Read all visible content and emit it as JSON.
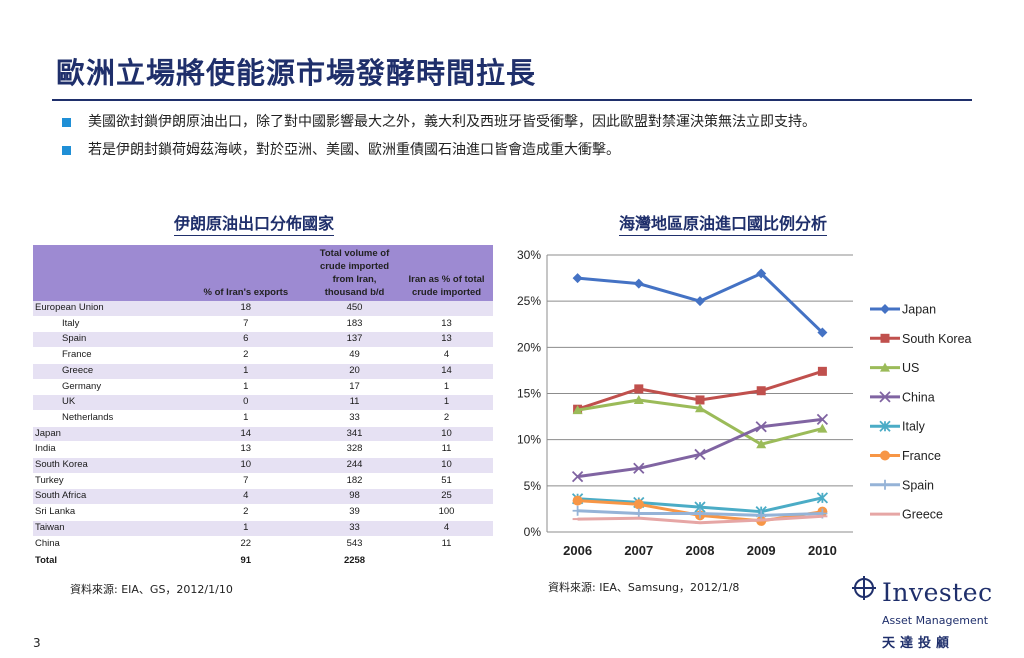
{
  "title": "歐洲立場將使能源市場發酵時間拉長",
  "bullets": [
    "美國欲封鎖伊朗原油出口，除了對中國影響最大之外，義大利及西班牙皆受衝擊，因此歐盟對禁運決策無法立即支持。",
    "若是伊朗封鎖荷姆茲海峽，對於亞洲、美國、歐洲重債國石油進口皆會造成重大衝擊。"
  ],
  "left_section": {
    "subtitle": "伊朗原油出口分佈國家",
    "source": "資料來源:  EIA、GS，2012/1/10"
  },
  "right_section": {
    "subtitle": "海灣地區原油進口國比例分析",
    "source": "資料來源: IEA、Samsung，2012/1/8"
  },
  "page_number": "3",
  "logo": {
    "brand": "Investec",
    "sub": "Asset Management",
    "cn": "天達投顧"
  },
  "colors": {
    "title": "#1f2f6b",
    "bullet": "#1f8fd6",
    "table_header": "#9d8ad2",
    "table_stripe": "#e6e1f3"
  },
  "chart_data": [
    {
      "type": "table",
      "columns": [
        "",
        "% of Iran's exports",
        "Total volume of crude imported from Iran, thousand b/d",
        "Iran as % of total crude imported"
      ],
      "rows": [
        {
          "name": "European Union",
          "indent": false,
          "exports": "18",
          "volume": "450",
          "pct": ""
        },
        {
          "name": "Italy",
          "indent": true,
          "exports": "7",
          "volume": "183",
          "pct": "13"
        },
        {
          "name": "Spain",
          "indent": true,
          "exports": "6",
          "volume": "137",
          "pct": "13"
        },
        {
          "name": "France",
          "indent": true,
          "exports": "2",
          "volume": "49",
          "pct": "4"
        },
        {
          "name": "Greece",
          "indent": true,
          "exports": "1",
          "volume": "20",
          "pct": "14"
        },
        {
          "name": "Germany",
          "indent": true,
          "exports": "1",
          "volume": "17",
          "pct": "1"
        },
        {
          "name": "UK",
          "indent": true,
          "exports": "0",
          "volume": "11",
          "pct": "1"
        },
        {
          "name": "Netherlands",
          "indent": true,
          "exports": "1",
          "volume": "33",
          "pct": "2"
        },
        {
          "name": "Japan",
          "indent": false,
          "exports": "14",
          "volume": "341",
          "pct": "10"
        },
        {
          "name": "India",
          "indent": false,
          "exports": "13",
          "volume": "328",
          "pct": "11"
        },
        {
          "name": "South Korea",
          "indent": false,
          "exports": "10",
          "volume": "244",
          "pct": "10"
        },
        {
          "name": "Turkey",
          "indent": false,
          "exports": "7",
          "volume": "182",
          "pct": "51"
        },
        {
          "name": "South Africa",
          "indent": false,
          "exports": "4",
          "volume": "98",
          "pct": "25"
        },
        {
          "name": "Sri Lanka",
          "indent": false,
          "exports": "2",
          "volume": "39",
          "pct": "100"
        },
        {
          "name": "Taiwan",
          "indent": false,
          "exports": "1",
          "volume": "33",
          "pct": "4"
        },
        {
          "name": "China",
          "indent": false,
          "exports": "22",
          "volume": "543",
          "pct": "11"
        }
      ],
      "total": {
        "name": "Total",
        "exports": "91",
        "volume": "2258",
        "pct": ""
      }
    },
    {
      "type": "line",
      "x": [
        "2006",
        "2007",
        "2008",
        "2009",
        "2010"
      ],
      "y_ticks": [
        "0%",
        "5%",
        "10%",
        "15%",
        "20%",
        "25%",
        "30%"
      ],
      "ylim": [
        0,
        30
      ],
      "grid": true,
      "legend": "right",
      "series": [
        {
          "name": "Japan",
          "color": "#4472c4",
          "marker": "diamond",
          "values": [
            27.5,
            26.9,
            25.0,
            28.0,
            21.6
          ]
        },
        {
          "name": "South Korea",
          "color": "#c0504d",
          "marker": "square",
          "values": [
            13.3,
            15.5,
            14.3,
            15.3,
            17.4
          ]
        },
        {
          "name": "US",
          "color": "#9bbb59",
          "marker": "triangle",
          "values": [
            13.2,
            14.3,
            13.4,
            9.5,
            11.2
          ]
        },
        {
          "name": "China",
          "color": "#8064a2",
          "marker": "x",
          "values": [
            6.0,
            6.9,
            8.4,
            11.4,
            12.2
          ]
        },
        {
          "name": "Italy",
          "color": "#4bacc6",
          "marker": "star",
          "values": [
            3.6,
            3.2,
            2.7,
            2.2,
            3.7
          ]
        },
        {
          "name": "France",
          "color": "#f79646",
          "marker": "circle",
          "values": [
            3.4,
            3.0,
            1.8,
            1.2,
            2.2
          ]
        },
        {
          "name": "Spain",
          "color": "#95b3d7",
          "marker": "plus",
          "values": [
            2.3,
            2.0,
            2.0,
            1.8,
            2.0
          ]
        },
        {
          "name": "Greece",
          "color": "#e6a6a5",
          "marker": "dash",
          "values": [
            1.4,
            1.5,
            1.0,
            1.3,
            1.7
          ]
        }
      ]
    }
  ]
}
